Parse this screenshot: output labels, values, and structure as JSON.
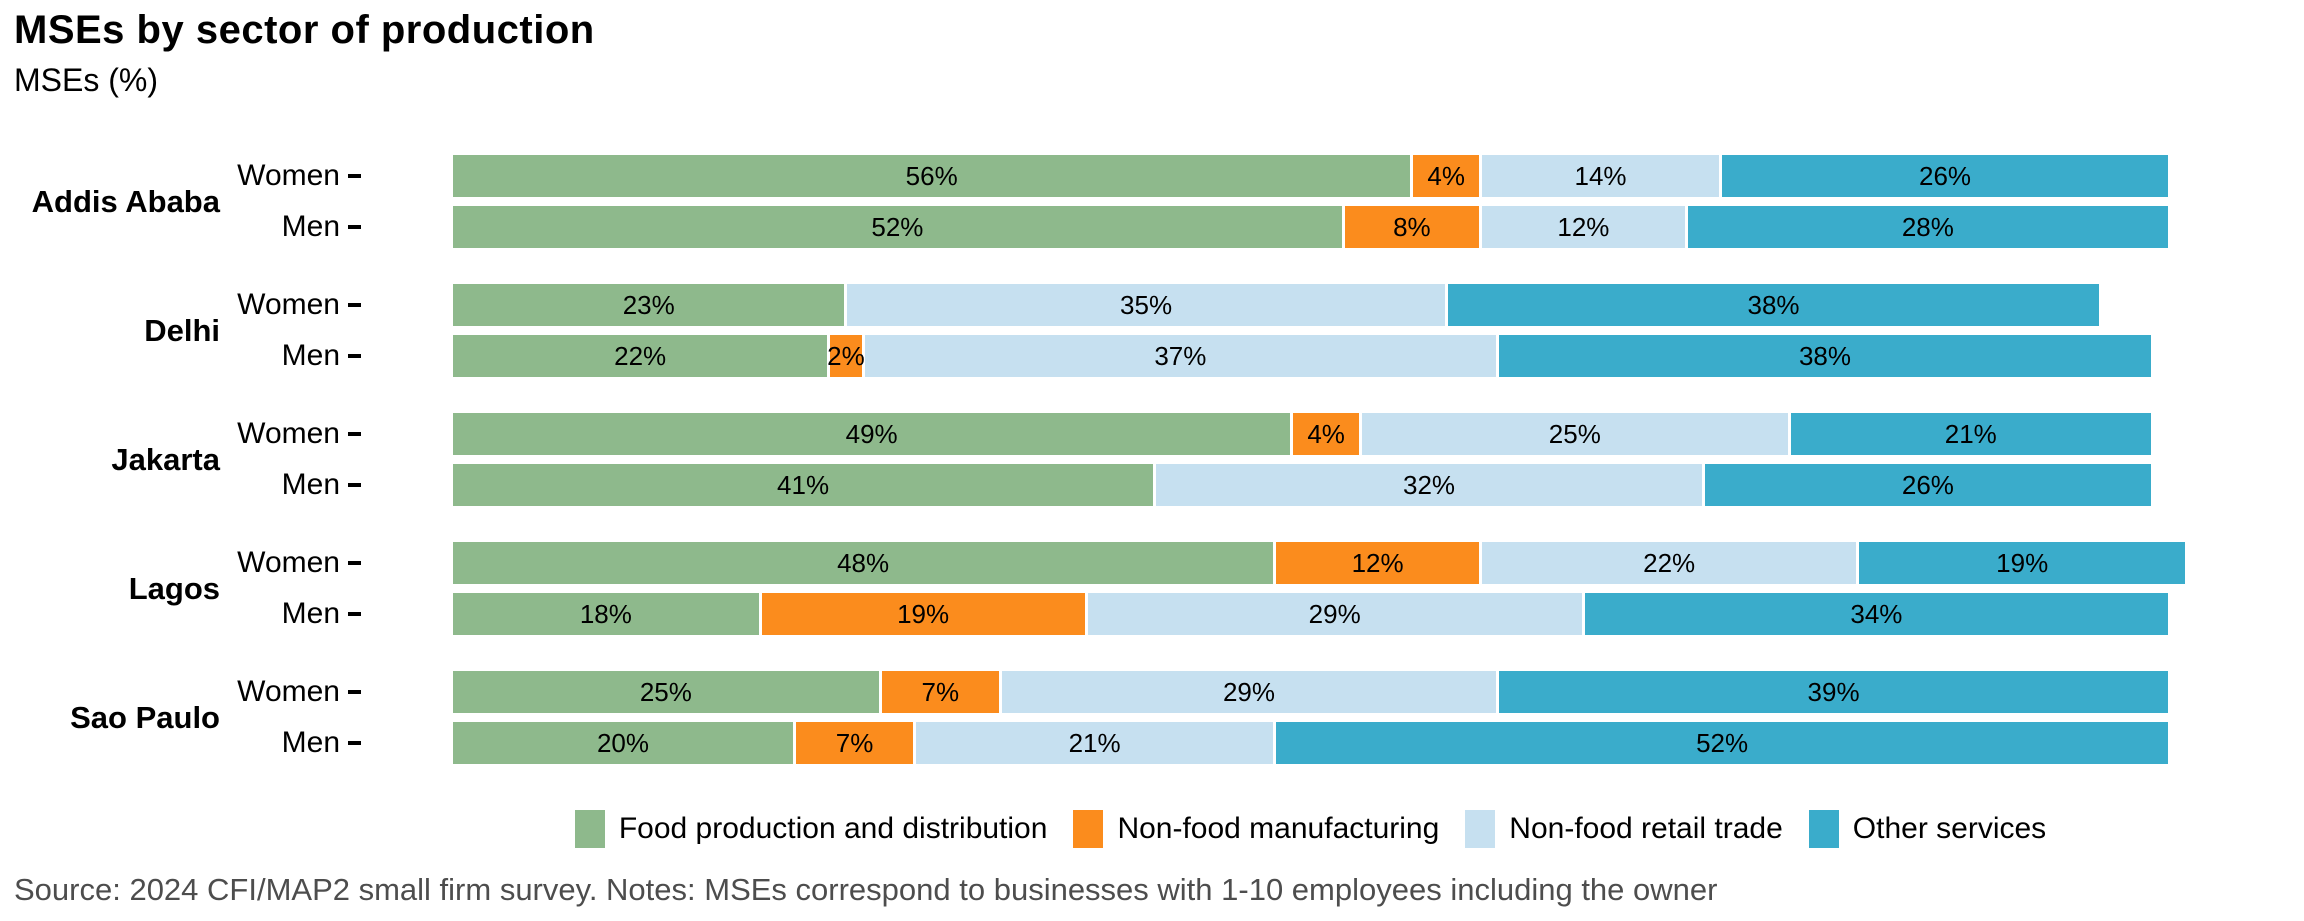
{
  "title": "MSEs by sector of production",
  "subtitle": "MSEs (%)",
  "source_note": "Source: 2024 CFI/MAP2 small firm survey. Notes: MSEs correspond to businesses with 1-10 employees including the owner",
  "text_colors": {
    "source": "#4d4d4d",
    "labels": "#000000"
  },
  "chart_data": {
    "type": "bar",
    "orientation": "horizontal",
    "stacked": true,
    "value_unit": "%",
    "xlim": [
      0,
      100
    ],
    "grid": false,
    "legend_position": "bottom",
    "title": "MSEs by sector of production",
    "ylabel": "MSEs (%)",
    "series": [
      {
        "name": "Food production and distribution",
        "color": "#8EB98C"
      },
      {
        "name": "Non-food manufacturing",
        "color": "#FB8C1D"
      },
      {
        "name": "Non-food retail trade",
        "color": "#C6E0F0"
      },
      {
        "name": "Other services",
        "color": "#3AACCB"
      }
    ],
    "groups": [
      {
        "city": "Addis Ababa",
        "rows": [
          {
            "label": "Women",
            "values": [
              56,
              4,
              14,
              26
            ]
          },
          {
            "label": "Men",
            "values": [
              52,
              8,
              12,
              28
            ]
          }
        ]
      },
      {
        "city": "Delhi",
        "rows": [
          {
            "label": "Women",
            "values": [
              23,
              0,
              35,
              38
            ]
          },
          {
            "label": "Men",
            "values": [
              22,
              2,
              37,
              38
            ]
          }
        ]
      },
      {
        "city": "Jakarta",
        "rows": [
          {
            "label": "Women",
            "values": [
              49,
              4,
              25,
              21
            ]
          },
          {
            "label": "Men",
            "values": [
              41,
              0,
              32,
              26
            ]
          }
        ]
      },
      {
        "city": "Lagos",
        "rows": [
          {
            "label": "Women",
            "values": [
              48,
              12,
              22,
              19
            ]
          },
          {
            "label": "Men",
            "values": [
              18,
              19,
              29,
              34
            ]
          }
        ]
      },
      {
        "city": "Sao Paulo",
        "rows": [
          {
            "label": "Women",
            "values": [
              25,
              7,
              29,
              39
            ]
          },
          {
            "label": "Men",
            "values": [
              20,
              7,
              21,
              52
            ]
          }
        ]
      }
    ]
  }
}
